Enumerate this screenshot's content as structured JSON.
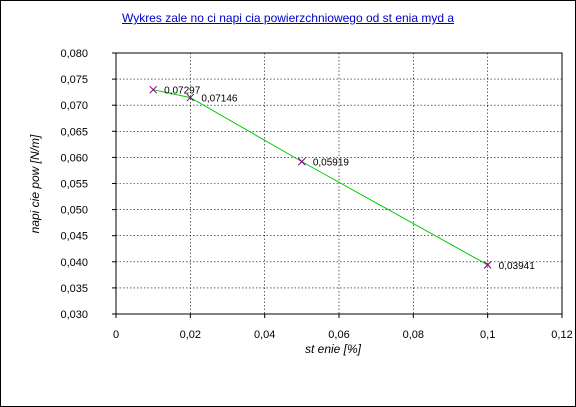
{
  "chart_data": {
    "type": "line",
    "title": "Wykres zale  no  ci napi  cia powierzchniowego od st    enia myd a",
    "xlabel": "st    enie [%]",
    "ylabel": "napi  cie pow [N/m]",
    "x": [
      0.01,
      0.02,
      0.05,
      0.1
    ],
    "series": [
      {
        "values": [
          0.07297,
          0.07146,
          0.05919,
          0.03941
        ]
      }
    ],
    "data_labels": [
      "0,07297",
      "0,07146",
      "0,05919",
      "0,03941"
    ],
    "xlim": [
      0,
      0.12
    ],
    "ylim": [
      0.03,
      0.08
    ],
    "x_ticks": [
      "0",
      "0,02",
      "0,04",
      "0,06",
      "0,08",
      "0,1",
      "0,12"
    ],
    "y_ticks": [
      "0,030",
      "0,035",
      "0,040",
      "0,045",
      "0,050",
      "0,055",
      "0,060",
      "0,065",
      "0,070",
      "0,075",
      "0,080"
    ],
    "grid": true,
    "line_color": "#00cc00",
    "marker_color": "#800080",
    "title_color": "#0000cc"
  }
}
